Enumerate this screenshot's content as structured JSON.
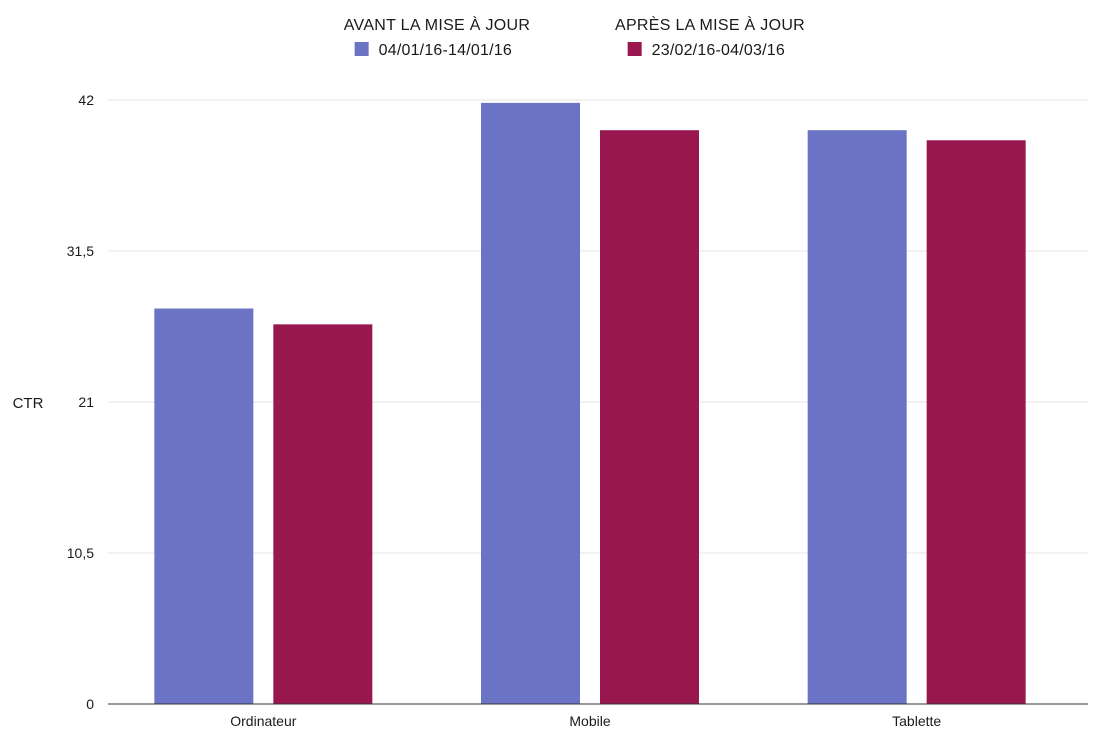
{
  "chart_data": {
    "type": "bar",
    "categories": [
      "Ordinateur",
      "Mobile",
      "Tablette"
    ],
    "series": [
      {
        "title": "AVANT LA MISE À JOUR",
        "name": "04/01/16-14/01/16",
        "color": "#6b73c4",
        "values": [
          27.5,
          41.8,
          39.9
        ]
      },
      {
        "title": "APRÈS LA MISE À JOUR",
        "name": "23/02/16-04/03/16",
        "color": "#99174f",
        "values": [
          26.4,
          39.9,
          39.2
        ]
      }
    ],
    "xlabel": "",
    "ylabel": "CTR",
    "ylim": [
      0,
      42
    ],
    "yticks": [
      "0",
      "10,5",
      "21",
      "31,5",
      "42"
    ],
    "ytick_values": [
      0,
      10.5,
      21,
      31.5,
      42
    ],
    "grid": true,
    "legend_position": "top"
  }
}
